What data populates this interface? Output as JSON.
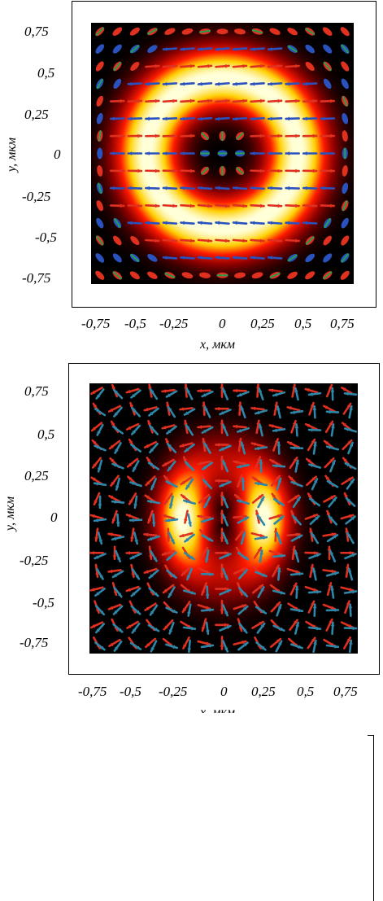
{
  "chart_data": [
    {
      "type": "heatmap",
      "title": "",
      "xlabel": "x, мкм",
      "ylabel": "y, мкм",
      "xlim": [
        -0.8,
        0.8
      ],
      "ylim": [
        -0.8,
        0.8
      ],
      "xticks": [
        "-0,75",
        "-0,5",
        "-0,25",
        "0",
        "0,25",
        "0,5",
        "0,75"
      ],
      "yticks": [
        "0,75",
        "0,5",
        "0,25",
        "0",
        "-0,25",
        "-0,5",
        "-0,75"
      ],
      "xtick_values": [
        -0.75,
        -0.5,
        -0.25,
        0,
        0.25,
        0.5,
        0.75
      ],
      "ytick_values": [
        0.75,
        0.5,
        0.25,
        0,
        -0.25,
        -0.5,
        -0.75
      ],
      "intensity_pattern": "ring",
      "ring_radius": 0.46,
      "ring_width": 0.19,
      "colormap": [
        "#000000",
        "#8a0000",
        "#ff1a00",
        "#ffd000",
        "#ffffd8"
      ],
      "overlay": "polarization ellipses and arrows (red and blue) on a 15x15 grid",
      "series_colors": {
        "red": "#e03020",
        "blue": "#2a52be",
        "green": "#22a050"
      },
      "grid": false
    },
    {
      "type": "heatmap",
      "title": "",
      "xlabel": "x, мкм",
      "ylabel": "y, мкм",
      "xlim": [
        -0.8,
        0.8
      ],
      "ylim": [
        -0.8,
        0.8
      ],
      "xticks": [
        "-0,75",
        "-0,5",
        "-0,25",
        "0",
        "0,25",
        "0,5",
        "0,75"
      ],
      "yticks": [
        "0,75",
        "0,5",
        "0,25",
        "0",
        "-0,25",
        "-0,5",
        "-0,75"
      ],
      "xtick_values": [
        -0.75,
        -0.5,
        -0.25,
        0,
        0.25,
        0.5,
        0.75
      ],
      "ytick_values": [
        0.75,
        0.5,
        0.25,
        0,
        -0.25,
        -0.5,
        -0.75
      ],
      "intensity_pattern": "two-lobe ring",
      "ring_radius_x": 0.24,
      "ring_radius_y": 0.32,
      "ring_width": 0.15,
      "colormap": [
        "#000000",
        "#8a0000",
        "#ff1a00",
        "#ffd000",
        "#ffffd8"
      ],
      "overlay": "polarization arrows (red and teal) on a 15x15 grid",
      "series_colors": {
        "red": "#e03020",
        "teal": "#2e86a8"
      },
      "grid": false
    }
  ]
}
